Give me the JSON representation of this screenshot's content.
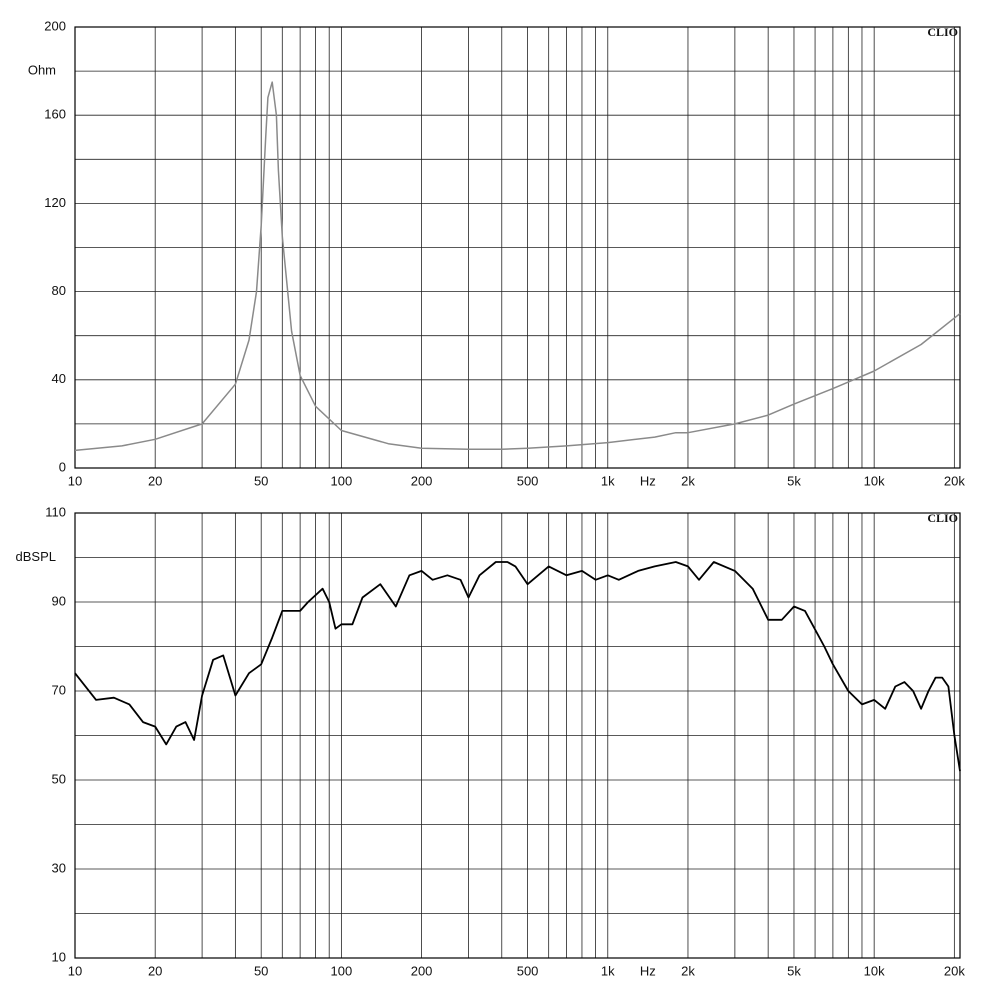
{
  "chart_data": [
    {
      "type": "line",
      "xscale": "log",
      "ylabel": "Ohm",
      "xlabel": "Hz",
      "annotation": "CLIO",
      "color": "#8a8a8a",
      "xlim": [
        10,
        21000
      ],
      "ylim": [
        0,
        200
      ],
      "yticks": [
        0,
        40,
        80,
        120,
        160,
        200
      ],
      "yminor": [
        20,
        60,
        100,
        140,
        180
      ],
      "xticks": [
        10,
        20,
        50,
        100,
        200,
        500,
        {
          "value": 1000,
          "label": "1k"
        },
        {
          "value": 2000,
          "label": "2k"
        },
        {
          "value": 5000,
          "label": "5k"
        },
        {
          "value": 10000,
          "label": "10k"
        },
        {
          "value": 20000,
          "label": "20k"
        }
      ],
      "xminor": [
        30,
        40,
        60,
        70,
        80,
        90,
        300,
        400,
        600,
        700,
        800,
        900,
        3000,
        4000,
        6000,
        7000,
        8000,
        9000
      ],
      "x": [
        10,
        15,
        20,
        30,
        40,
        45,
        48,
        50,
        52,
        53,
        55,
        57,
        58,
        60,
        65,
        70,
        80,
        100,
        150,
        200,
        300,
        400,
        500,
        700,
        1000,
        1500,
        1800,
        2000,
        3000,
        4000,
        5000,
        7000,
        10000,
        15000,
        21000
      ],
      "values": [
        8,
        10,
        13,
        20,
        38,
        58,
        80,
        110,
        150,
        168,
        175,
        160,
        135,
        105,
        62,
        42,
        28,
        17,
        11,
        9,
        8.5,
        8.5,
        9,
        10,
        11.5,
        14,
        16,
        16,
        20,
        24,
        29,
        36,
        44,
        56,
        70
      ]
    },
    {
      "type": "line",
      "xscale": "log",
      "ylabel": "dBSPL",
      "xlabel": "Hz",
      "annotation": "CLIO",
      "color": "#000000",
      "xlim": [
        10,
        21000
      ],
      "ylim": [
        10,
        110
      ],
      "yticks": [
        10,
        30,
        50,
        70,
        90,
        110
      ],
      "yminor": [
        20,
        40,
        60,
        80,
        100
      ],
      "xticks": [
        10,
        20,
        50,
        100,
        200,
        500,
        {
          "value": 1000,
          "label": "1k"
        },
        {
          "value": 2000,
          "label": "2k"
        },
        {
          "value": 5000,
          "label": "5k"
        },
        {
          "value": 10000,
          "label": "10k"
        },
        {
          "value": 20000,
          "label": "20k"
        }
      ],
      "xminor": [
        30,
        40,
        60,
        70,
        80,
        90,
        300,
        400,
        600,
        700,
        800,
        900,
        3000,
        4000,
        6000,
        7000,
        8000,
        9000
      ],
      "x": [
        10,
        12,
        14,
        16,
        18,
        20,
        22,
        24,
        26,
        28,
        30,
        33,
        36,
        40,
        45,
        50,
        55,
        60,
        70,
        75,
        85,
        90,
        95,
        100,
        110,
        120,
        140,
        160,
        180,
        200,
        220,
        250,
        280,
        300,
        330,
        380,
        420,
        450,
        500,
        600,
        700,
        800,
        900,
        1000,
        1100,
        1300,
        1500,
        1800,
        2000,
        2200,
        2500,
        3000,
        3500,
        4000,
        4500,
        5000,
        5500,
        6500,
        7000,
        8000,
        9000,
        10000,
        11000,
        12000,
        13000,
        14000,
        15000,
        16000,
        17000,
        18000,
        19000,
        20000,
        21000
      ],
      "values": [
        74,
        68,
        68.5,
        67,
        63,
        62,
        58,
        62,
        63,
        59,
        69,
        77,
        78,
        69,
        74,
        76,
        82,
        88,
        88,
        90,
        93,
        90,
        84,
        85,
        85,
        91,
        94,
        89,
        96,
        97,
        95,
        96,
        95,
        91,
        96,
        99,
        99,
        98,
        94,
        98,
        96,
        97,
        95,
        96,
        95,
        97,
        98,
        99,
        98,
        95,
        99,
        97,
        93,
        86,
        86,
        89,
        88,
        80,
        76,
        70,
        67,
        68,
        66,
        71,
        72,
        70,
        66,
        70,
        73,
        73,
        71,
        60,
        52
      ]
    }
  ]
}
